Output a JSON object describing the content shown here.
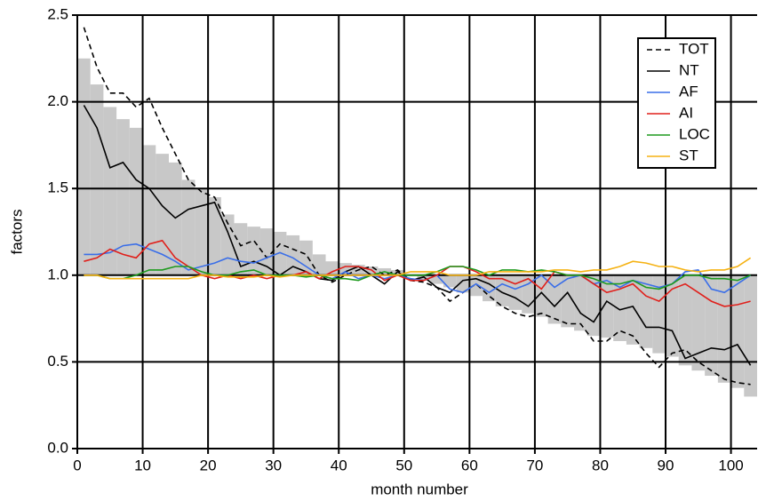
{
  "chart_data": {
    "type": "line",
    "xlabel": "month number",
    "ylabel": "factors",
    "xlim": [
      0,
      104
    ],
    "ylim": [
      0,
      2.5
    ],
    "xticks": [
      0,
      10,
      20,
      30,
      40,
      50,
      60,
      70,
      80,
      90,
      100
    ],
    "yticks": [
      {
        "value": 0,
        "label": "0.0"
      },
      0.5,
      {
        "value": 1,
        "label": "1.0"
      },
      1.5,
      {
        "value": 2,
        "label": "2.0"
      },
      2.5
    ],
    "grid": true,
    "legend": "upper right",
    "baseline": 1,
    "x": [
      1,
      3,
      5,
      7,
      9,
      11,
      13,
      15,
      17,
      19,
      21,
      23,
      25,
      27,
      29,
      31,
      33,
      35,
      37,
      39,
      41,
      43,
      45,
      47,
      49,
      51,
      53,
      55,
      57,
      59,
      61,
      63,
      65,
      67,
      69,
      71,
      73,
      75,
      77,
      79,
      81,
      83,
      85,
      87,
      89,
      91,
      93,
      95,
      97,
      99,
      101,
      103
    ],
    "bars": {
      "color": "#c8c8c8",
      "values": [
        2.25,
        2.1,
        1.97,
        1.9,
        1.85,
        1.75,
        1.7,
        1.65,
        1.55,
        1.5,
        1.45,
        1.35,
        1.3,
        1.28,
        1.27,
        1.25,
        1.23,
        1.2,
        1.12,
        1.08,
        1.07,
        1.06,
        1.05,
        1.04,
        1.03,
        1.0,
        0.97,
        0.95,
        0.93,
        0.9,
        0.88,
        0.85,
        0.82,
        0.8,
        0.78,
        0.76,
        0.72,
        0.7,
        0.68,
        0.65,
        0.64,
        0.62,
        0.6,
        0.58,
        0.55,
        0.53,
        0.48,
        0.45,
        0.42,
        0.38,
        0.35,
        0.3
      ]
    },
    "series": [
      {
        "name": "TOT",
        "color": "#000000",
        "dash": true,
        "values": [
          2.43,
          2.2,
          2.05,
          2.05,
          1.97,
          2.02,
          1.85,
          1.7,
          1.55,
          1.48,
          1.45,
          1.3,
          1.17,
          1.2,
          1.1,
          1.18,
          1.15,
          1.12,
          1.0,
          0.96,
          1.0,
          1.03,
          1.05,
          1.0,
          1.03,
          0.97,
          0.96,
          0.93,
          0.85,
          0.9,
          0.95,
          0.88,
          0.82,
          0.78,
          0.76,
          0.78,
          0.75,
          0.72,
          0.72,
          0.62,
          0.62,
          0.68,
          0.65,
          0.55,
          0.47,
          0.55,
          0.57,
          0.5,
          0.45,
          0.4,
          0.38,
          0.37
        ]
      },
      {
        "name": "NT",
        "color": "#000000",
        "values": [
          1.98,
          1.85,
          1.62,
          1.65,
          1.55,
          1.5,
          1.4,
          1.33,
          1.38,
          1.4,
          1.42,
          1.25,
          1.05,
          1.08,
          1.05,
          1.0,
          1.05,
          1.02,
          0.98,
          0.97,
          1.02,
          1.05,
          1.0,
          0.95,
          1.02,
          0.97,
          0.99,
          0.93,
          0.9,
          0.97,
          0.98,
          0.95,
          0.9,
          0.87,
          0.82,
          0.9,
          0.82,
          0.9,
          0.78,
          0.73,
          0.85,
          0.8,
          0.82,
          0.7,
          0.7,
          0.68,
          0.52,
          0.55,
          0.58,
          0.57,
          0.6,
          0.48
        ]
      },
      {
        "name": "AF",
        "color": "#3a6ee8",
        "values": [
          1.12,
          1.12,
          1.13,
          1.17,
          1.18,
          1.15,
          1.12,
          1.08,
          1.03,
          1.05,
          1.07,
          1.1,
          1.08,
          1.07,
          1.1,
          1.13,
          1.1,
          1.05,
          1.0,
          0.98,
          1.02,
          0.98,
          1.0,
          0.98,
          1.0,
          0.98,
          0.97,
          1.0,
          0.92,
          0.9,
          0.95,
          0.9,
          0.95,
          0.92,
          0.95,
          1.0,
          0.93,
          0.98,
          1.0,
          0.95,
          0.97,
          0.93,
          0.97,
          0.95,
          0.93,
          0.95,
          1.02,
          1.03,
          0.92,
          0.9,
          0.95,
          1.0
        ]
      },
      {
        "name": "AI",
        "color": "#e0201b",
        "values": [
          1.08,
          1.1,
          1.15,
          1.12,
          1.1,
          1.18,
          1.2,
          1.1,
          1.05,
          1.0,
          0.98,
          1.0,
          0.98,
          1.0,
          0.98,
          1.0,
          1.0,
          1.02,
          0.98,
          1.02,
          1.05,
          1.05,
          1.03,
          0.97,
          1.0,
          0.97,
          0.97,
          1.0,
          1.05,
          1.05,
          1.02,
          0.98,
          0.98,
          0.95,
          0.98,
          0.92,
          1.02,
          1.0,
          1.0,
          0.95,
          0.9,
          0.92,
          0.95,
          0.88,
          0.85,
          0.92,
          0.95,
          0.9,
          0.85,
          0.82,
          0.83,
          0.85
        ]
      },
      {
        "name": "LOC",
        "color": "#1e9a1e",
        "values": [
          1.0,
          1.0,
          0.98,
          0.98,
          1.0,
          1.03,
          1.03,
          1.05,
          1.05,
          1.02,
          1.0,
          1.0,
          1.02,
          1.03,
          1.0,
          1.0,
          1.0,
          0.99,
          1.0,
          0.98,
          0.98,
          0.97,
          1.0,
          1.02,
          1.0,
          1.0,
          1.0,
          1.02,
          1.05,
          1.05,
          1.03,
          1.0,
          1.03,
          1.03,
          1.02,
          1.03,
          1.02,
          1.0,
          1.0,
          0.98,
          0.95,
          0.95,
          0.97,
          0.93,
          0.92,
          0.95,
          1.0,
          1.0,
          0.98,
          0.98,
          0.97,
          1.0
        ]
      },
      {
        "name": "ST",
        "color": "#f5b213",
        "values": [
          1.0,
          1.0,
          0.98,
          0.98,
          0.98,
          0.98,
          0.98,
          0.98,
          0.98,
          1.0,
          1.0,
          0.99,
          0.99,
          0.99,
          1.0,
          0.99,
          1.0,
          1.0,
          1.0,
          1.0,
          1.0,
          1.0,
          1.0,
          1.0,
          1.0,
          1.02,
          1.02,
          1.02,
          1.0,
          1.0,
          1.0,
          1.02,
          1.02,
          1.02,
          1.02,
          1.02,
          1.03,
          1.03,
          1.02,
          1.03,
          1.03,
          1.05,
          1.08,
          1.07,
          1.05,
          1.05,
          1.03,
          1.02,
          1.03,
          1.03,
          1.05,
          1.1
        ]
      }
    ]
  }
}
